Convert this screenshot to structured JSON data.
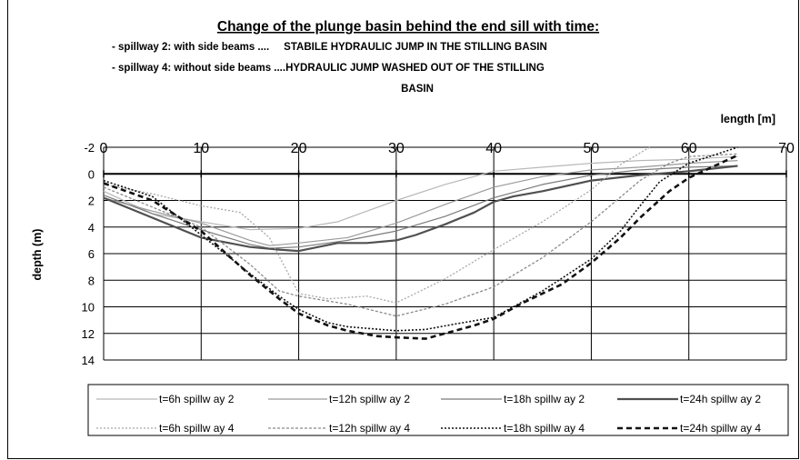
{
  "chart_data": {
    "type": "line",
    "title": "Change of the plunge basin behind the end sill with time:",
    "subtitle_lines": [
      "- spillway 2: with side beams ....     STABILE HYDRAULIC JUMP IN THE STILLING BASIN",
      "- spillway 4: without side beams ....HYDRAULIC JUMP WASHED OUT OF THE STILLING",
      "BASIN"
    ],
    "xlabel": "length [m]",
    "ylabel": "depth (m)",
    "xlim": [
      0,
      70
    ],
    "ylim": [
      -2,
      14
    ],
    "y_inverted": true,
    "x_ticks": [
      0,
      10,
      20,
      30,
      40,
      50,
      60,
      70
    ],
    "y_ticks": [
      -2,
      0,
      2,
      4,
      6,
      8,
      10,
      12,
      14
    ],
    "x_tick_labels": [
      "0",
      "10",
      "20",
      "30",
      "40",
      "50",
      "60",
      "70"
    ],
    "y_tick_labels": [
      "-2",
      "0",
      "2",
      "4",
      "6",
      "8",
      "10",
      "12",
      "14"
    ],
    "grid": true,
    "legend_position": "bottom",
    "series": [
      {
        "name": "t=6h spillway 2",
        "color": "#b8b8b8",
        "dash": "solid",
        "width": 1.2,
        "points": [
          [
            0,
            1.3
          ],
          [
            5,
            3.0
          ],
          [
            10,
            3.6
          ],
          [
            15,
            4.2
          ],
          [
            20,
            4.1
          ],
          [
            24,
            3.6
          ],
          [
            27,
            2.8
          ],
          [
            30,
            2.0
          ],
          [
            35,
            0.8
          ],
          [
            40,
            -0.2
          ],
          [
            45,
            -0.5
          ],
          [
            50,
            -0.8
          ],
          [
            55,
            -1.0
          ],
          [
            60,
            -1.1
          ],
          [
            65,
            -1.3
          ]
        ]
      },
      {
        "name": "t=12h spillway 2",
        "color": "#9a9a9a",
        "dash": "solid",
        "width": 1.2,
        "points": [
          [
            0,
            1.8
          ],
          [
            5,
            2.8
          ],
          [
            10,
            3.7
          ],
          [
            15,
            5.0
          ],
          [
            17,
            5.4
          ],
          [
            20,
            5.2
          ],
          [
            25,
            4.8
          ],
          [
            30,
            3.7
          ],
          [
            35,
            2.3
          ],
          [
            40,
            1.0
          ],
          [
            45,
            0.2
          ],
          [
            50,
            -0.3
          ],
          [
            55,
            -0.5
          ],
          [
            60,
            -0.8
          ],
          [
            65,
            -1.0
          ]
        ]
      },
      {
        "name": "t=18h spillway 2",
        "color": "#7a7a7a",
        "dash": "solid",
        "width": 1.2,
        "points": [
          [
            0,
            1.6
          ],
          [
            5,
            3.0
          ],
          [
            10,
            4.2
          ],
          [
            15,
            5.3
          ],
          [
            17,
            5.6
          ],
          [
            20,
            5.5
          ],
          [
            25,
            5.0
          ],
          [
            30,
            4.3
          ],
          [
            35,
            3.2
          ],
          [
            40,
            1.8
          ],
          [
            45,
            0.8
          ],
          [
            50,
            0.1
          ],
          [
            55,
            -0.3
          ],
          [
            60,
            -0.5
          ],
          [
            65,
            -0.6
          ]
        ]
      },
      {
        "name": "t=24h spillway 2",
        "color": "#505050",
        "dash": "solid",
        "width": 2.2,
        "points": [
          [
            0,
            1.8
          ],
          [
            5,
            3.3
          ],
          [
            10,
            4.8
          ],
          [
            15,
            5.5
          ],
          [
            18,
            5.7
          ],
          [
            20,
            5.8
          ],
          [
            22,
            5.5
          ],
          [
            24,
            5.2
          ],
          [
            27,
            5.2
          ],
          [
            30,
            5.0
          ],
          [
            32,
            4.6
          ],
          [
            35,
            3.8
          ],
          [
            38,
            2.9
          ],
          [
            40,
            2.1
          ],
          [
            42,
            1.7
          ],
          [
            45,
            1.3
          ],
          [
            50,
            0.5
          ],
          [
            55,
            0.1
          ],
          [
            60,
            -0.2
          ],
          [
            65,
            -0.6
          ]
        ]
      },
      {
        "name": "t=6h spillway 4",
        "color": "#a8a8a8",
        "dash": "2,2",
        "width": 1.3,
        "points": [
          [
            0,
            0.8
          ],
          [
            5,
            1.5
          ],
          [
            10,
            2.4
          ],
          [
            14,
            2.9
          ],
          [
            17,
            4.8
          ],
          [
            20,
            9.0
          ],
          [
            23,
            9.4
          ],
          [
            27,
            9.2
          ],
          [
            30,
            9.7
          ],
          [
            35,
            7.9
          ],
          [
            40,
            5.7
          ],
          [
            45,
            3.6
          ],
          [
            50,
            1.2
          ],
          [
            53,
            -0.7
          ],
          [
            56,
            -2.0
          ]
        ]
      },
      {
        "name": "t=12h spillway 4",
        "color": "#8a8a8a",
        "dash": "3,2",
        "width": 1.3,
        "points": [
          [
            0,
            1.0
          ],
          [
            5,
            2.5
          ],
          [
            10,
            4.0
          ],
          [
            15,
            6.8
          ],
          [
            18,
            8.8
          ],
          [
            20,
            9.2
          ],
          [
            25,
            9.8
          ],
          [
            30,
            10.7
          ],
          [
            35,
            9.8
          ],
          [
            40,
            8.5
          ],
          [
            45,
            6.3
          ],
          [
            50,
            3.6
          ],
          [
            55,
            0.5
          ],
          [
            58,
            -0.8
          ],
          [
            60,
            -1.3
          ],
          [
            65,
            -1.5
          ]
        ]
      },
      {
        "name": "t=18h spillway 4",
        "color": "#111111",
        "dash": "2,2",
        "width": 1.6,
        "points": [
          [
            0,
            0.5
          ],
          [
            5,
            1.7
          ],
          [
            10,
            4.6
          ],
          [
            15,
            7.5
          ],
          [
            18,
            9.2
          ],
          [
            20,
            10.2
          ],
          [
            23,
            11.2
          ],
          [
            25,
            11.5
          ],
          [
            30,
            11.8
          ],
          [
            33,
            11.7
          ],
          [
            36,
            11.3
          ],
          [
            40,
            10.8
          ],
          [
            45,
            8.8
          ],
          [
            50,
            6.4
          ],
          [
            53,
            4.3
          ],
          [
            55,
            2.4
          ],
          [
            57,
            0.6
          ],
          [
            60,
            -0.8
          ],
          [
            65,
            -2.0
          ]
        ]
      },
      {
        "name": "t=24h spillway 4",
        "color": "#111111",
        "dash": "6,4",
        "width": 2.6,
        "points": [
          [
            0,
            0.7
          ],
          [
            5,
            2.0
          ],
          [
            10,
            4.3
          ],
          [
            15,
            7.6
          ],
          [
            18,
            9.4
          ],
          [
            20,
            10.5
          ],
          [
            23,
            11.4
          ],
          [
            25,
            11.8
          ],
          [
            28,
            12.2
          ],
          [
            30,
            12.3
          ],
          [
            33,
            12.4
          ],
          [
            35,
            12.0
          ],
          [
            38,
            11.4
          ],
          [
            40,
            10.9
          ],
          [
            43,
            9.7
          ],
          [
            47,
            8.3
          ],
          [
            50,
            6.7
          ],
          [
            53,
            4.8
          ],
          [
            55,
            3.3
          ],
          [
            58,
            1.3
          ],
          [
            60,
            0.3
          ],
          [
            65,
            -1.4
          ]
        ]
      }
    ],
    "legend_labels": [
      "t=6h spillw ay 2",
      "t=12h spillw ay 2",
      "t=18h spillw ay 2",
      "t=24h spillw ay 2",
      "t=6h spillw ay 4",
      "t=12h spillw ay 4",
      "t=18h spillw ay 4",
      "t=24h spillw ay 4"
    ]
  }
}
